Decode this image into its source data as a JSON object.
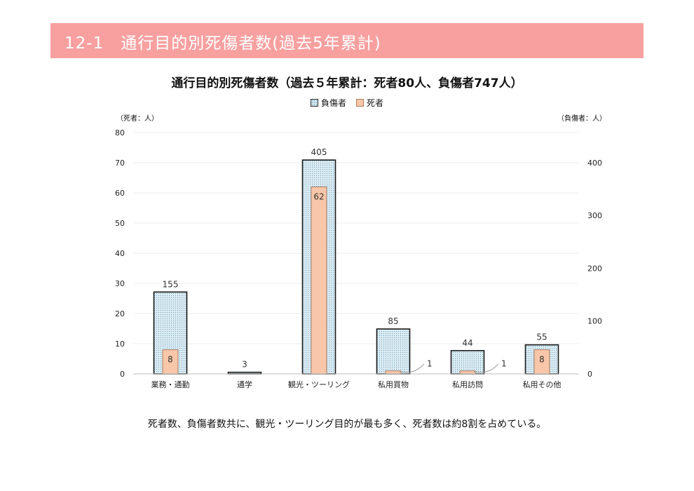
{
  "header": {
    "title": "12-1　通行目的別死傷者数(過去5年累計)"
  },
  "chart_data": {
    "type": "bar",
    "title": "通行目的別死傷者数（過去５年累計：死者80人、負傷者747人）",
    "legend": [
      "負傷者",
      "死者"
    ],
    "legend_placement": "top",
    "ylabel_left": "（死者：人）",
    "ylabel_right": "（負傷者：人）",
    "categories": [
      "業務・通勤",
      "通学",
      "観光・ツーリング",
      "私用買物",
      "私用訪問",
      "私用その他"
    ],
    "series": [
      {
        "name": "負傷者",
        "axis": "right",
        "values": [
          155,
          3,
          405,
          85,
          44,
          55
        ],
        "labels": [
          "155",
          "3",
          "405",
          "85",
          "44",
          "55"
        ],
        "color": "#dcecf4"
      },
      {
        "name": "死者",
        "axis": "left",
        "values": [
          8,
          0,
          62,
          1,
          1,
          8
        ],
        "labels": [
          "8",
          "",
          "62",
          "1",
          "1",
          "8"
        ],
        "color": "#f8c6a8"
      }
    ],
    "ylim_left": [
      0,
      80
    ],
    "yticks_left": [
      "0",
      "10",
      "20",
      "30",
      "40",
      "50",
      "60",
      "70",
      "80"
    ],
    "ylim_right": [
      0,
      457
    ],
    "yticks_right": [
      "0",
      "100",
      "200",
      "300",
      "400"
    ],
    "grid": true
  },
  "footnote": "死者数、負傷者数共に、観光・ツーリング目的が最も多く、死者数は約8割を占めている。"
}
